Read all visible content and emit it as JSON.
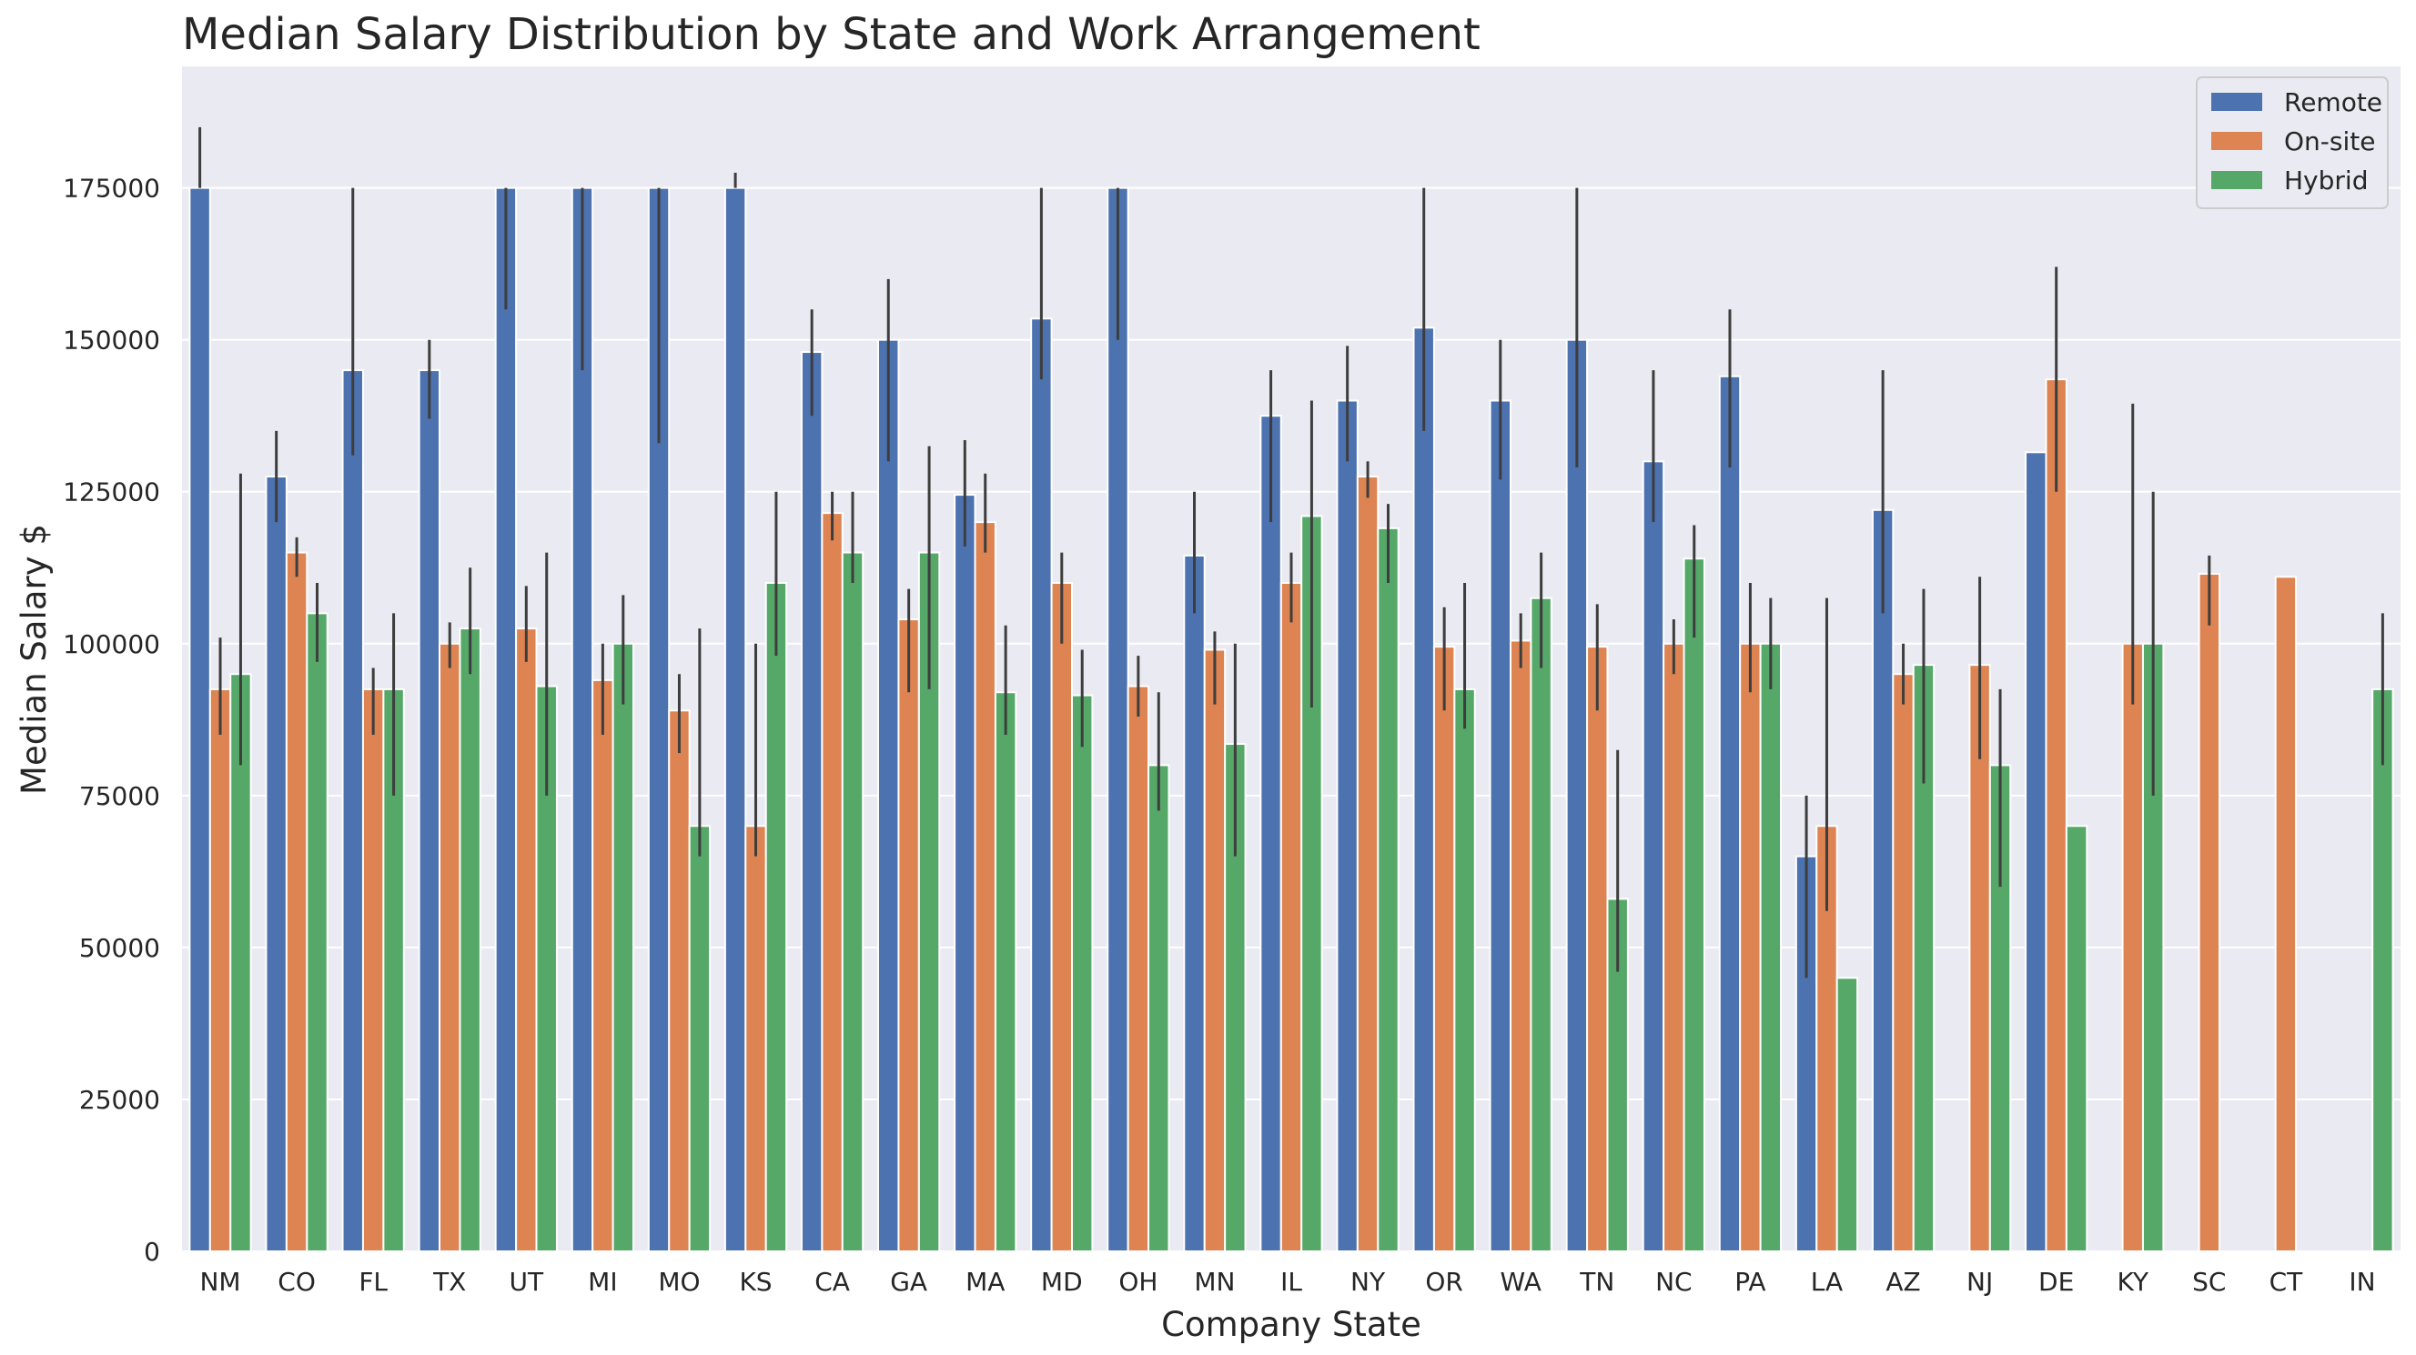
{
  "chart_data": {
    "type": "bar",
    "title": "Median Salary Distribution by State and Work Arrangement",
    "xlabel": "Company State",
    "ylabel": "Median Salary $",
    "ylim": [
      0,
      195000
    ],
    "yticks": [
      0,
      25000,
      50000,
      75000,
      100000,
      125000,
      150000,
      175000
    ],
    "grid": true,
    "legend_position": "top-right",
    "categories": [
      "NM",
      "CO",
      "FL",
      "TX",
      "UT",
      "MI",
      "MO",
      "KS",
      "CA",
      "GA",
      "MA",
      "MD",
      "OH",
      "MN",
      "IL",
      "NY",
      "OR",
      "WA",
      "TN",
      "NC",
      "PA",
      "LA",
      "AZ",
      "NJ",
      "DE",
      "KY",
      "SC",
      "CT",
      "IN"
    ],
    "series": [
      {
        "name": "Remote",
        "color": "#4c72b0",
        "values": [
          175000,
          127500,
          145000,
          145000,
          175000,
          175000,
          175000,
          175000,
          148000,
          150000,
          124500,
          153500,
          175000,
          114500,
          137500,
          140000,
          152000,
          140000,
          150000,
          130000,
          144000,
          65000,
          122000,
          null,
          131500,
          null,
          null,
          null,
          null
        ],
        "error_bars": [
          [
            175000,
            185000
          ],
          [
            120000,
            135000
          ],
          [
            131000,
            175000
          ],
          [
            137000,
            150000
          ],
          [
            155000,
            175000
          ],
          [
            145000,
            175000
          ],
          [
            133000,
            175000
          ],
          [
            175000,
            177500
          ],
          [
            137500,
            155000
          ],
          [
            130000,
            160000
          ],
          [
            116000,
            133500
          ],
          [
            143500,
            175000
          ],
          [
            150000,
            175000
          ],
          [
            105000,
            125000
          ],
          [
            120000,
            145000
          ],
          [
            130000,
            149000
          ],
          [
            135000,
            175000
          ],
          [
            127000,
            150000
          ],
          [
            129000,
            175000
          ],
          [
            120000,
            145000
          ],
          [
            129000,
            155000
          ],
          [
            45000,
            75000
          ],
          [
            105000,
            145000
          ],
          null,
          null,
          null,
          null,
          null,
          null
        ]
      },
      {
        "name": "On-site",
        "color": "#dd8452",
        "values": [
          92500,
          115000,
          92500,
          100000,
          102500,
          94000,
          89000,
          70000,
          121500,
          104000,
          120000,
          110000,
          93000,
          99000,
          110000,
          127500,
          99500,
          100500,
          99500,
          100000,
          100000,
          70000,
          95000,
          96500,
          143500,
          100000,
          111500,
          111000,
          null
        ],
        "error_bars": [
          [
            85000,
            101000
          ],
          [
            111000,
            117500
          ],
          [
            85000,
            96000
          ],
          [
            96000,
            103500
          ],
          [
            97000,
            109500
          ],
          [
            85000,
            100000
          ],
          [
            82000,
            95000
          ],
          [
            65000,
            100000
          ],
          [
            117000,
            125000
          ],
          [
            92000,
            109000
          ],
          [
            115000,
            128000
          ],
          [
            100000,
            115000
          ],
          [
            88000,
            98000
          ],
          [
            90000,
            102000
          ],
          [
            103500,
            115000
          ],
          [
            124000,
            130000
          ],
          [
            89000,
            106000
          ],
          [
            96000,
            105000
          ],
          [
            89000,
            106500
          ],
          [
            95000,
            104000
          ],
          [
            92000,
            110000
          ],
          [
            56000,
            107500
          ],
          [
            90000,
            100000
          ],
          [
            81000,
            111000
          ],
          [
            125000,
            162000
          ],
          [
            90000,
            139500
          ],
          [
            103000,
            114500
          ],
          null,
          null
        ]
      },
      {
        "name": "Hybrid",
        "color": "#55a868",
        "values": [
          95000,
          105000,
          92500,
          102500,
          93000,
          100000,
          70000,
          110000,
          115000,
          115000,
          92000,
          91500,
          80000,
          83500,
          121000,
          119000,
          92500,
          107500,
          58000,
          114000,
          100000,
          45000,
          96500,
          80000,
          70000,
          100000,
          null,
          null,
          92500
        ],
        "error_bars": [
          [
            80000,
            128000
          ],
          [
            97000,
            110000
          ],
          [
            75000,
            105000
          ],
          [
            95000,
            112500
          ],
          [
            75000,
            115000
          ],
          [
            90000,
            108000
          ],
          [
            65000,
            102500
          ],
          [
            98000,
            125000
          ],
          [
            110000,
            125000
          ],
          [
            92500,
            132500
          ],
          [
            85000,
            103000
          ],
          [
            83000,
            99000
          ],
          [
            72500,
            92000
          ],
          [
            65000,
            100000
          ],
          [
            89500,
            140000
          ],
          [
            110000,
            123000
          ],
          [
            86000,
            110000
          ],
          [
            96000,
            115000
          ],
          [
            46000,
            82500
          ],
          [
            101000,
            119500
          ],
          [
            92500,
            107500
          ],
          null,
          [
            77000,
            109000
          ],
          [
            60000,
            92500
          ],
          null,
          [
            75000,
            125000
          ],
          null,
          null,
          [
            80000,
            105000
          ]
        ]
      }
    ]
  }
}
